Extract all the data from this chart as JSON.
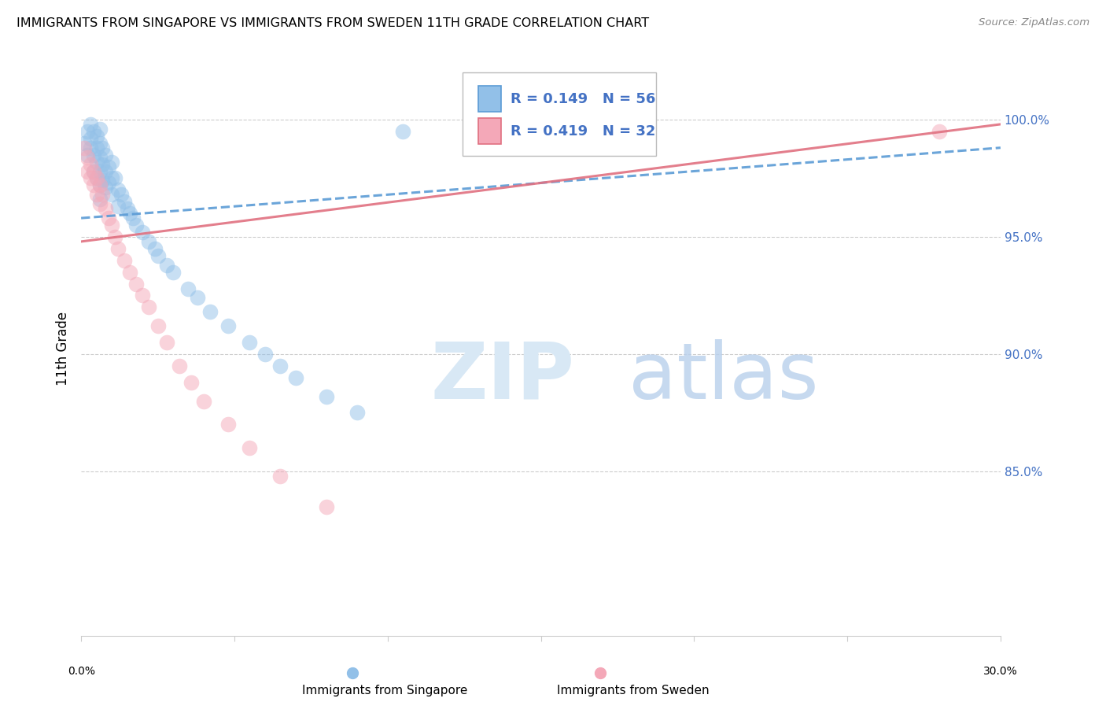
{
  "title": "IMMIGRANTS FROM SINGAPORE VS IMMIGRANTS FROM SWEDEN 11TH GRADE CORRELATION CHART",
  "source": "Source: ZipAtlas.com",
  "ylabel": "11th Grade",
  "right_yticks": [
    "100.0%",
    "95.0%",
    "90.0%",
    "85.0%"
  ],
  "right_ytick_vals": [
    1.0,
    0.95,
    0.9,
    0.85
  ],
  "xlim": [
    0.0,
    0.3
  ],
  "ylim": [
    0.78,
    1.025
  ],
  "color_singapore": "#92C0E8",
  "color_sweden": "#F4A8B8",
  "color_sg_line": "#5B9BD5",
  "color_sw_line": "#E07080",
  "color_text_blue": "#4472C4",
  "singapore_x": [
    0.001,
    0.002,
    0.002,
    0.003,
    0.003,
    0.003,
    0.004,
    0.004,
    0.004,
    0.005,
    0.005,
    0.005,
    0.005,
    0.006,
    0.006,
    0.006,
    0.006,
    0.006,
    0.006,
    0.007,
    0.007,
    0.007,
    0.008,
    0.008,
    0.008,
    0.009,
    0.009,
    0.01,
    0.01,
    0.01,
    0.011,
    0.012,
    0.012,
    0.013,
    0.014,
    0.015,
    0.016,
    0.017,
    0.018,
    0.02,
    0.022,
    0.024,
    0.025,
    0.028,
    0.03,
    0.035,
    0.038,
    0.042,
    0.048,
    0.055,
    0.06,
    0.065,
    0.07,
    0.08,
    0.09,
    0.105
  ],
  "singapore_y": [
    0.99,
    0.995,
    0.985,
    0.998,
    0.992,
    0.988,
    0.995,
    0.985,
    0.978,
    0.993,
    0.988,
    0.982,
    0.975,
    0.996,
    0.99,
    0.984,
    0.978,
    0.972,
    0.966,
    0.988,
    0.981,
    0.974,
    0.985,
    0.978,
    0.971,
    0.98,
    0.973,
    0.982,
    0.975,
    0.968,
    0.975,
    0.97,
    0.963,
    0.968,
    0.965,
    0.962,
    0.96,
    0.958,
    0.955,
    0.952,
    0.948,
    0.945,
    0.942,
    0.938,
    0.935,
    0.928,
    0.924,
    0.918,
    0.912,
    0.905,
    0.9,
    0.895,
    0.89,
    0.882,
    0.875,
    0.995
  ],
  "sweden_x": [
    0.001,
    0.002,
    0.002,
    0.003,
    0.003,
    0.004,
    0.004,
    0.005,
    0.005,
    0.006,
    0.006,
    0.007,
    0.008,
    0.009,
    0.01,
    0.011,
    0.012,
    0.014,
    0.016,
    0.018,
    0.02,
    0.022,
    0.025,
    0.028,
    0.032,
    0.036,
    0.04,
    0.048,
    0.055,
    0.065,
    0.08,
    0.28
  ],
  "sweden_y": [
    0.988,
    0.984,
    0.978,
    0.981,
    0.975,
    0.978,
    0.972,
    0.975,
    0.968,
    0.972,
    0.964,
    0.968,
    0.962,
    0.958,
    0.955,
    0.95,
    0.945,
    0.94,
    0.935,
    0.93,
    0.925,
    0.92,
    0.912,
    0.905,
    0.895,
    0.888,
    0.88,
    0.87,
    0.86,
    0.848,
    0.835,
    0.995
  ],
  "sg_trend_x": [
    0.0,
    0.3
  ],
  "sg_trend_y": [
    0.958,
    0.988
  ],
  "sw_trend_x": [
    0.0,
    0.3
  ],
  "sw_trend_y": [
    0.948,
    0.998
  ],
  "grid_vals": [
    1.0,
    0.95,
    0.9,
    0.85
  ],
  "xticks": [
    0.0,
    0.05,
    0.1,
    0.15,
    0.2,
    0.25,
    0.3
  ]
}
